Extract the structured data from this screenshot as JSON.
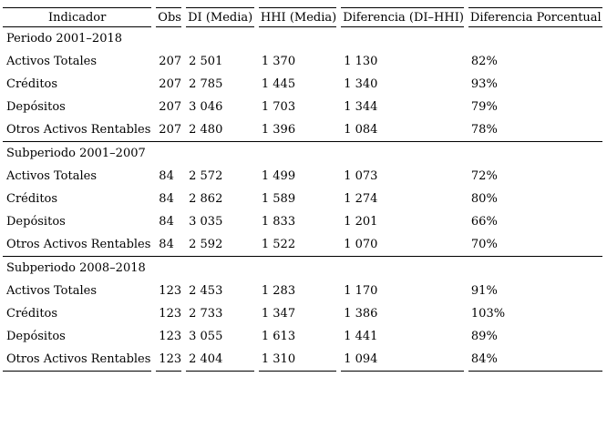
{
  "colors": {
    "background": "#ffffff",
    "text": "#000000",
    "rule": "#000000"
  },
  "chart_data": {
    "type": "table",
    "title": "",
    "columns": [
      "Indicador",
      "Obs",
      "DI (Media)",
      "HHI (Media)",
      "Diferencia (DI–HHI)",
      "Diferencia Porcentual"
    ],
    "column_keys": [
      "indicador",
      "obs",
      "di",
      "hhi",
      "diferencia",
      "porcentual"
    ],
    "sections": [
      {
        "label": "Periodo 2001–2018",
        "rows": [
          {
            "indicador": "Activos Totales",
            "obs": "207",
            "di": "2 501",
            "hhi": "1 370",
            "diferencia": "1 130",
            "porcentual": "82%"
          },
          {
            "indicador": "Créditos",
            "obs": "207",
            "di": "2 785",
            "hhi": "1 445",
            "diferencia": "1 340",
            "porcentual": "93%"
          },
          {
            "indicador": "Depósitos",
            "obs": "207",
            "di": "3 046",
            "hhi": "1 703",
            "diferencia": "1 344",
            "porcentual": "79%"
          },
          {
            "indicador": "Otros Activos Rentables",
            "obs": "207",
            "di": "2 480",
            "hhi": "1 396",
            "diferencia": "1 084",
            "porcentual": "78%"
          }
        ]
      },
      {
        "label": "Subperiodo 2001–2007",
        "rows": [
          {
            "indicador": "Activos Totales",
            "obs": "84",
            "di": "2 572",
            "hhi": "1 499",
            "diferencia": "1 073",
            "porcentual": "72%"
          },
          {
            "indicador": "Créditos",
            "obs": "84",
            "di": "2 862",
            "hhi": "1 589",
            "diferencia": "1 274",
            "porcentual": "80%"
          },
          {
            "indicador": "Depósitos",
            "obs": "84",
            "di": "3 035",
            "hhi": "1 833",
            "diferencia": "1 201",
            "porcentual": "66%"
          },
          {
            "indicador": "Otros Activos Rentables",
            "obs": "84",
            "di": "2 592",
            "hhi": "1 522",
            "diferencia": "1 070",
            "porcentual": "70%"
          }
        ]
      },
      {
        "label": "Subperiodo 2008–2018",
        "rows": [
          {
            "indicador": "Activos Totales",
            "obs": "123",
            "di": "2 453",
            "hhi": "1 283",
            "diferencia": "1 170",
            "porcentual": "91%"
          },
          {
            "indicador": "Créditos",
            "obs": "123",
            "di": "2 733",
            "hhi": "1 347",
            "diferencia": "1 386",
            "porcentual": "103%"
          },
          {
            "indicador": "Depósitos",
            "obs": "123",
            "di": "3 055",
            "hhi": "1 613",
            "diferencia": "1 441",
            "porcentual": "89%"
          },
          {
            "indicador": "Otros Activos Rentables",
            "obs": "123",
            "di": "2 404",
            "hhi": "1 310",
            "diferencia": "1 094",
            "porcentual": "84%"
          }
        ]
      }
    ]
  }
}
